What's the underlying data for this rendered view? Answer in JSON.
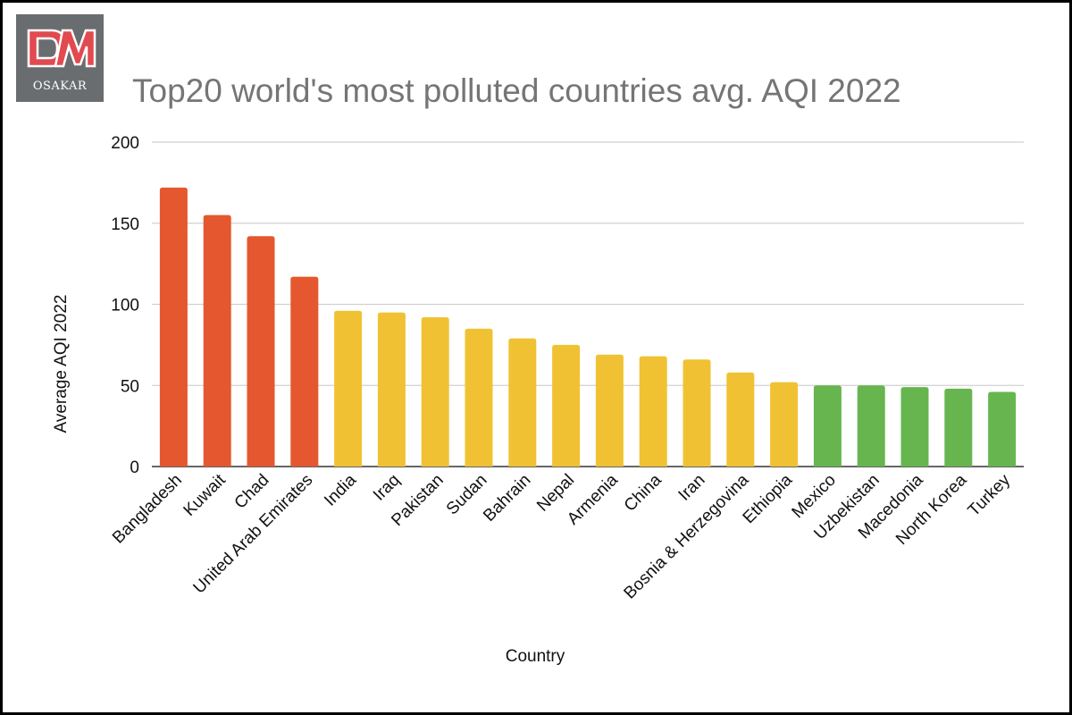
{
  "logo": {
    "text": "OSAKAR",
    "colors": {
      "background": "#6a6d70",
      "mark_red": "#e14a4f",
      "mark_outline": "#ffffff"
    }
  },
  "chart_data": {
    "type": "bar",
    "title": "Top20 world's most polluted countries avg. AQI 2022",
    "xlabel": "Country",
    "ylabel": "Average AQI 2022",
    "ylim": [
      0,
      200
    ],
    "yticks": [
      0,
      50,
      100,
      150,
      200
    ],
    "grid": true,
    "categories": [
      "Bangladesh",
      "Kuwait",
      "Chad",
      "United Arab Emirates",
      "India",
      "Iraq",
      "Pakistan",
      "Sudan",
      "Bahrain",
      "Nepal",
      "Armenia",
      "China",
      "Iran",
      "Bosnia & Herzegovina",
      "Ethiopia",
      "Mexico",
      "Uzbekistan",
      "Macedonia",
      "North Korea",
      "Turkey"
    ],
    "values": [
      172,
      155,
      142,
      117,
      96,
      95,
      92,
      85,
      79,
      75,
      69,
      68,
      66,
      58,
      52,
      50,
      50,
      49,
      48,
      46
    ],
    "bar_colors": [
      "#e5572e",
      "#e5572e",
      "#e5572e",
      "#e5572e",
      "#f0c233",
      "#f0c233",
      "#f0c233",
      "#f0c233",
      "#f0c233",
      "#f0c233",
      "#f0c233",
      "#f0c233",
      "#f0c233",
      "#f0c233",
      "#f0c233",
      "#67b54f",
      "#67b54f",
      "#67b54f",
      "#67b54f",
      "#67b54f"
    ]
  }
}
